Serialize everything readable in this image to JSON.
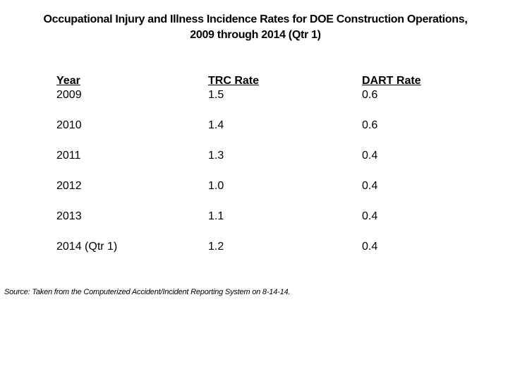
{
  "title": {
    "line1": "Occupational Injury and Illness Incidence Rates for DOE Construction Operations,",
    "line2": "2009 through 2014 (Qtr 1)"
  },
  "table": {
    "headers": {
      "year": "Year",
      "trc": "TRC Rate",
      "dart": "DART Rate"
    },
    "rows": [
      {
        "year": "2009",
        "trc": "1.5",
        "dart": "0.6"
      },
      {
        "year": "2010",
        "trc": "1.4",
        "dart": "0.6"
      },
      {
        "year": "2011",
        "trc": "1.3",
        "dart": "0.4"
      },
      {
        "year": "2012",
        "trc": "1.0",
        "dart": "0.4"
      },
      {
        "year": "2013",
        "trc": "1.1",
        "dart": "0.4"
      },
      {
        "year": "2014 (Qtr 1)",
        "trc": "1.2",
        "dart": "0.4"
      }
    ]
  },
  "source_note": "Source: Taken from the Computerized Accident/Incident Reporting System on 8-14-14.",
  "colors": {
    "text": "#000000",
    "background": "#ffffff"
  }
}
